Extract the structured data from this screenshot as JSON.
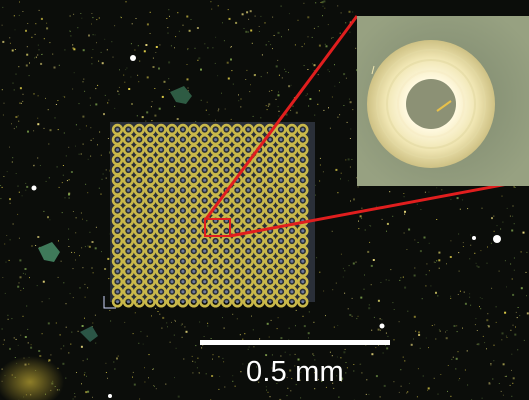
{
  "scale_bar": {
    "label": "0.5 mm",
    "color": "#ffffff"
  },
  "image": {
    "background_color": "#0b0d0a",
    "speckle_colors": [
      "#e8d64a",
      "#7fa64e",
      "#c8c060",
      "#5e7b3c",
      "#f0e080"
    ],
    "array_pad_color": "#c9b84a",
    "array_pad_rows": 18,
    "array_pad_cols": 18,
    "highlight_color": "#e01e1e",
    "inset_ring_colors": [
      "#fdf6cf",
      "#d8cf97",
      "#8d9172"
    ],
    "inset_background": "#8f9a7a"
  }
}
